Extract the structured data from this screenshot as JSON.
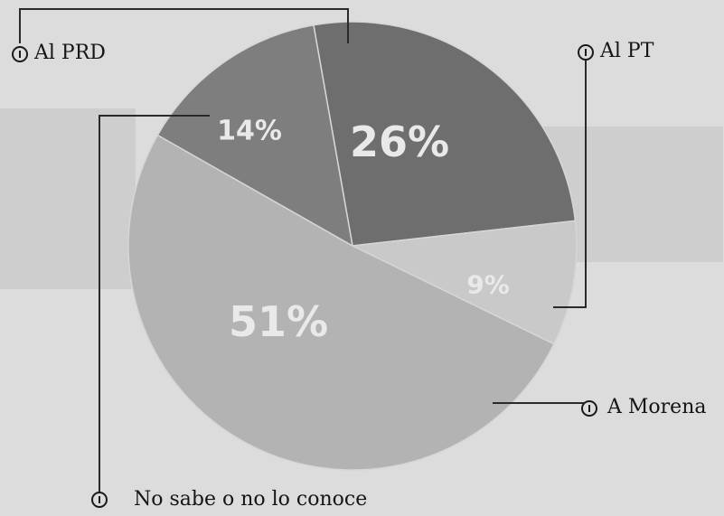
{
  "colors": {
    "paper": "#dcdcdc",
    "pt": "#6e6e6e",
    "prd": "#7c7c7c",
    "morena": "#bebebe",
    "no_sabe": "#b0b0b0",
    "text": "#151515",
    "pct_text": "#ececec"
  },
  "chart_data": {
    "type": "pie",
    "title": "",
    "slices": [
      {
        "label": "Al PT",
        "value": 26,
        "display": "26%",
        "color": "#6e6e6e"
      },
      {
        "label": "A Morena",
        "value": 9,
        "display": "9%",
        "color": "#c9c9c9"
      },
      {
        "label": "No sabe o no lo conoce",
        "value": 51,
        "display": "51%",
        "color": "#b3b3b3"
      },
      {
        "label": "Al PRD",
        "value": 14,
        "display": "14%",
        "color": "#7e7e7e"
      }
    ],
    "legend": "callouts"
  },
  "callouts": {
    "prd": "Al PRD",
    "pt": "Al PT",
    "morena": "A Morena",
    "no_sabe": "No sabe o no lo conoce"
  },
  "labels": {
    "pt": "26%",
    "morena": "9%",
    "no_sabe": "51%",
    "prd": "14%"
  }
}
